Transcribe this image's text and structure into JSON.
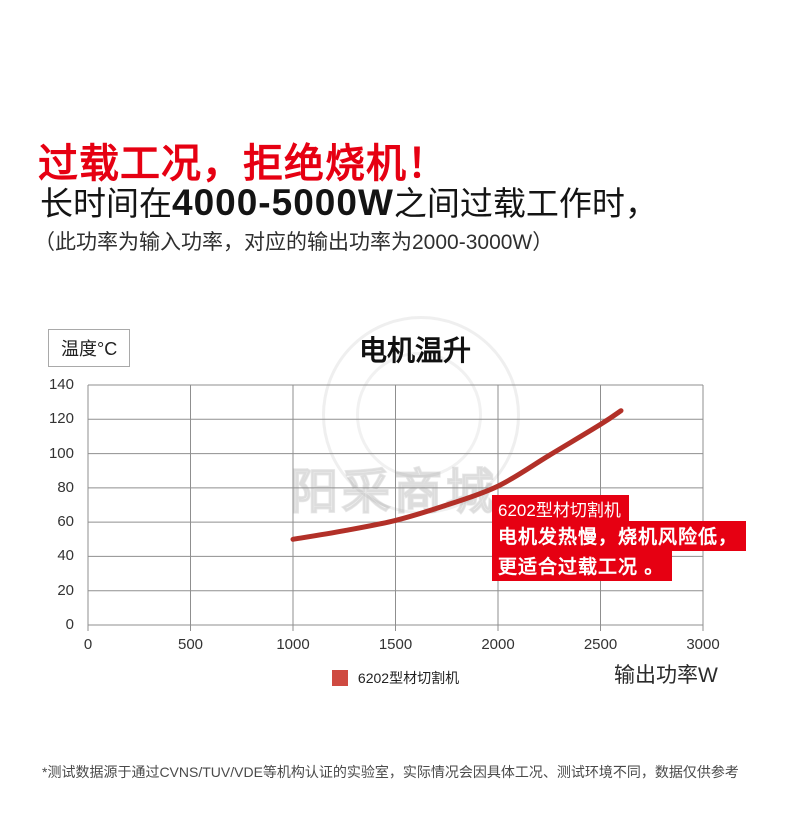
{
  "theme": {
    "accent_red": "#e60012",
    "curve_red": "#b23028",
    "legend_red": "#cf4a41",
    "grid_gray": "#8f8f8f"
  },
  "page": {
    "heading": "过载工况，拒绝烧机！",
    "subheading": {
      "prefix": "长时间在",
      "power": "4000-5000W",
      "suffix": "之间过载工作时，"
    },
    "note": "（此功率为输入功率，对应的输出功率为2000-3000W）",
    "footer": "*测试数据源于通过CVNS/TUV/VDE等机构认证的实验室，实际情况会因具体工况、测试环境不同，数据仅供参考"
  },
  "chart": {
    "title": "电机温升",
    "y_axis_unit_label": "温度°C",
    "x_axis_label": "输出功率W",
    "legend": {
      "label": "6202型材切割机",
      "color": "#cf4a41"
    },
    "callout": {
      "bg": "#e60012",
      "line1": "6202型材切割机",
      "line2": "电机发热慢，烧机风险低，",
      "line3": "更适合过载工况 。"
    }
  },
  "watermark": {
    "text": "阳采商城"
  },
  "chart_data": {
    "type": "line",
    "title": "电机温升",
    "xlabel": "输出功率W",
    "ylabel": "温度°C",
    "xlim": [
      0,
      3000
    ],
    "ylim": [
      0,
      140
    ],
    "x_ticks": [
      0,
      500,
      1000,
      1500,
      2000,
      2500,
      3000
    ],
    "y_ticks": [
      0,
      20,
      40,
      60,
      80,
      100,
      120,
      140
    ],
    "grid": true,
    "legend_position": "bottom-center",
    "series": [
      {
        "name": "6202型材切割机",
        "color": "#b23028",
        "points": [
          [
            1000,
            50
          ],
          [
            1250,
            55
          ],
          [
            1500,
            61
          ],
          [
            1750,
            70
          ],
          [
            2000,
            81
          ],
          [
            2250,
            99
          ],
          [
            2500,
            117
          ],
          [
            2600,
            125
          ]
        ]
      }
    ]
  }
}
